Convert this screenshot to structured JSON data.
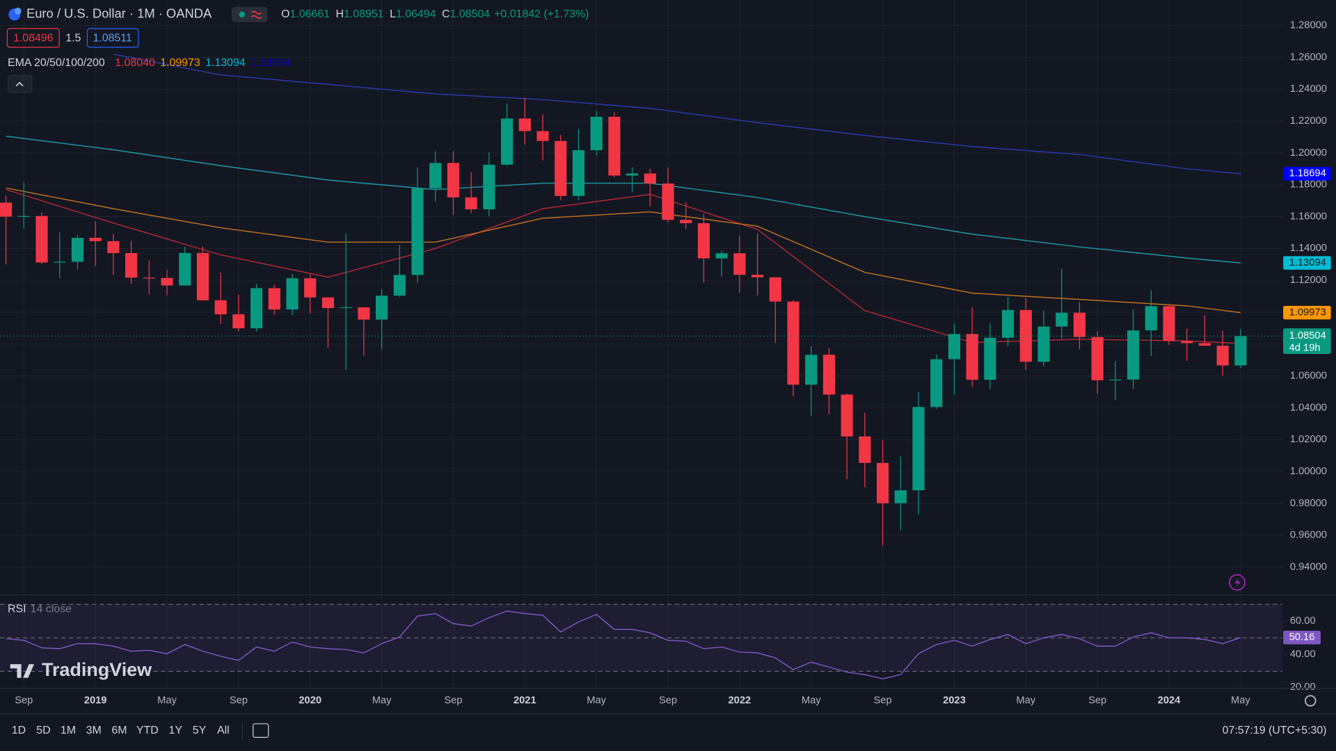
{
  "header": {
    "title": "Euro / U.S. Dollar · 1M · OANDA",
    "ohlc_keys": [
      "O",
      "H",
      "L",
      "C"
    ],
    "change": "+0.01842 (+1.73%)",
    "bid": "1.08496",
    "spread": "1.5",
    "ask": "1.08511",
    "indicator": "EMA 20/50/100/200"
  },
  "brand": "TradingView",
  "toolbar": {
    "ranges": [
      "1D",
      "5D",
      "1M",
      "3M",
      "6M",
      "YTD",
      "1Y",
      "5Y",
      "All"
    ],
    "clock": "07:57:19 (UTC+5:30)"
  },
  "chart_data": [
    {
      "type": "candlestick",
      "up_color": "#089981",
      "down_color": "#f23645",
      "grid": true,
      "countdown": "4d 19h",
      "categories": [
        null,
        "Sep",
        null,
        null,
        null,
        "2019",
        null,
        null,
        null,
        "May",
        null,
        null,
        null,
        "Sep",
        null,
        null,
        null,
        "2020",
        null,
        null,
        null,
        "May",
        null,
        null,
        null,
        "Sep",
        null,
        null,
        null,
        "2021",
        null,
        null,
        null,
        "May",
        null,
        null,
        null,
        "Sep",
        null,
        null,
        null,
        "2022",
        null,
        null,
        null,
        "May",
        null,
        null,
        null,
        "Sep",
        null,
        null,
        null,
        "2023",
        null,
        null,
        null,
        "May",
        null,
        null,
        null,
        "Sep",
        null,
        null,
        null,
        "2024",
        null,
        null,
        null,
        "May"
      ],
      "open": [
        1.1688,
        1.16,
        1.1604,
        1.1312,
        1.1317,
        1.1467,
        1.1446,
        1.1371,
        1.1217,
        1.1215,
        1.1168,
        1.1372,
        1.1075,
        1.0987,
        1.0899,
        1.1151,
        1.1017,
        1.1213,
        1.1093,
        1.1026,
        1.1031,
        1.0954,
        1.1104,
        1.1234,
        1.1778,
        1.1937,
        1.1721,
        1.1646,
        1.1926,
        1.2216,
        1.2137,
        1.2075,
        1.173,
        1.2017,
        1.2227,
        1.1858,
        1.1871,
        1.1808,
        1.158,
        1.1559,
        1.1338,
        1.137,
        1.1235,
        1.1219,
        1.1067,
        1.0545,
        1.0733,
        1.0483,
        1.022,
        1.0054,
        0.9801,
        0.9882,
        1.0405,
        1.0705,
        1.0863,
        1.0576,
        1.084,
        1.1014,
        1.0689,
        1.091,
        1.0997,
        1.0844,
        1.0573,
        1.0577,
        1.0886,
        1.1038,
        1.0819,
        1.0806,
        1.079,
        1.06661
      ],
      "high": [
        1.1733,
        1.1815,
        1.1625,
        1.15,
        1.1486,
        1.157,
        1.1489,
        1.1448,
        1.1324,
        1.1265,
        1.1412,
        1.1412,
        1.1249,
        1.111,
        1.1179,
        1.1175,
        1.1239,
        1.1239,
        1.1095,
        1.1495,
        1.1019,
        1.1147,
        1.1422,
        1.1909,
        1.2011,
        1.2011,
        1.188,
        1.2003,
        1.231,
        1.2349,
        1.2243,
        1.2113,
        1.215,
        1.2265,
        1.2254,
        1.1909,
        1.1901,
        1.1909,
        1.1692,
        1.1616,
        1.1386,
        1.1482,
        1.1495,
        1.1185,
        1.1076,
        1.0787,
        1.0774,
        1.0488,
        1.0369,
        1.0198,
        1.0094,
        1.0497,
        1.0736,
        1.0929,
        1.1033,
        1.093,
        1.1095,
        1.1092,
        1.1012,
        1.1275,
        1.1065,
        1.0882,
        1.0695,
        1.1017,
        1.114,
        1.1046,
        1.0898,
        1.0981,
        1.0885,
        1.08951
      ],
      "low": [
        1.1301,
        1.1525,
        1.1302,
        1.1216,
        1.1269,
        1.1289,
        1.1234,
        1.1176,
        1.1111,
        1.1107,
        1.1181,
        1.1101,
        1.0926,
        1.0879,
        1.0879,
        1.0981,
        1.0981,
        1.0992,
        1.0777,
        1.0636,
        1.0727,
        1.0767,
        1.1097,
        1.1185,
        1.1696,
        1.1612,
        1.1622,
        1.1603,
        1.192,
        1.2053,
        1.1952,
        1.1704,
        1.1704,
        1.1986,
        1.1847,
        1.1752,
        1.1664,
        1.1563,
        1.1524,
        1.1186,
        1.1222,
        1.1121,
        1.1106,
        1.0806,
        1.0472,
        1.0349,
        1.0359,
        0.9952,
        0.9901,
        0.9536,
        0.9632,
        0.973,
        1.0392,
        1.0482,
        1.0533,
        1.0516,
        1.0788,
        1.0635,
        1.0662,
        1.0834,
        1.0766,
        1.0488,
        1.0448,
        1.0517,
        1.0724,
        1.0795,
        1.0695,
        1.0801,
        1.0601,
        1.06494
      ],
      "close": [
        1.16,
        1.1604,
        1.1312,
        1.1317,
        1.1467,
        1.1446,
        1.1371,
        1.1217,
        1.1215,
        1.1168,
        1.1372,
        1.1075,
        1.0987,
        1.0899,
        1.1151,
        1.1017,
        1.1213,
        1.1093,
        1.1026,
        1.1031,
        1.0954,
        1.1104,
        1.1234,
        1.1778,
        1.1937,
        1.1721,
        1.1646,
        1.1926,
        1.2216,
        1.2137,
        1.2075,
        1.173,
        1.2017,
        1.2227,
        1.1858,
        1.1871,
        1.1808,
        1.158,
        1.1559,
        1.1338,
        1.137,
        1.1235,
        1.1219,
        1.1067,
        1.0545,
        1.0733,
        1.0483,
        1.022,
        1.0054,
        0.9801,
        0.9882,
        1.0405,
        1.0705,
        1.0863,
        1.0576,
        1.084,
        1.1014,
        1.0689,
        1.091,
        1.0997,
        1.0844,
        1.0573,
        1.0577,
        1.0886,
        1.1038,
        1.0819,
        1.0806,
        1.079,
        1.0666,
        1.08504
      ],
      "ylim": [
        0.9229,
        1.296
      ],
      "yticks": [
        {
          "value": 0.94,
          "label": "0.94000"
        },
        {
          "value": 0.96,
          "label": "0.96000"
        },
        {
          "value": 0.98,
          "label": "0.98000"
        },
        {
          "value": 1.0,
          "label": "1.00000"
        },
        {
          "value": 1.02,
          "label": "1.02000"
        },
        {
          "value": 1.04,
          "label": "1.04000"
        },
        {
          "value": 1.06,
          "label": "1.06000"
        },
        {
          "value": 1.08,
          "label": "1.08000"
        },
        {
          "value": 1.1,
          "label": "1.10000"
        },
        {
          "value": 1.12,
          "label": "1.12000"
        },
        {
          "value": 1.14,
          "label": "1.14000"
        },
        {
          "value": 1.16,
          "label": "1.16000"
        },
        {
          "value": 1.18,
          "label": "1.18000"
        },
        {
          "value": 1.2,
          "label": "1.20000"
        },
        {
          "value": 1.22,
          "label": "1.22000"
        },
        {
          "value": 1.24,
          "label": "1.24000"
        },
        {
          "value": 1.26,
          "label": "1.26000"
        },
        {
          "value": 1.28,
          "label": "1.28000"
        }
      ],
      "ema": [
        {
          "color": "#f23645",
          "line_color": "#b22833",
          "last_label": "1.08040",
          "x_index": [
            0,
            6,
            12,
            18,
            24,
            30,
            36,
            42,
            48,
            54,
            60,
            66,
            69
          ],
          "values": [
            1.177,
            1.156,
            1.136,
            1.122,
            1.14,
            1.165,
            1.174,
            1.152,
            1.101,
            1.081,
            1.083,
            1.082,
            1.0804
          ]
        },
        {
          "color": "#ff9800",
          "line_color": "#c2711f",
          "last_label": "1.09973",
          "x_index": [
            0,
            6,
            12,
            18,
            24,
            30,
            36,
            42,
            48,
            54,
            60,
            66,
            69
          ],
          "values": [
            1.178,
            1.165,
            1.153,
            1.144,
            1.144,
            1.159,
            1.163,
            1.154,
            1.125,
            1.112,
            1.108,
            1.104,
            1.09973
          ]
        },
        {
          "color": "#00bcd4",
          "line_color": "#1a9aa8",
          "last_label": "1.13094",
          "x_index": [
            0,
            6,
            12,
            18,
            24,
            30,
            36,
            42,
            48,
            54,
            60,
            66,
            69
          ],
          "values": [
            1.2105,
            1.202,
            1.192,
            1.183,
            1.177,
            1.181,
            1.181,
            1.172,
            1.16,
            1.149,
            1.141,
            1.134,
            1.13094
          ]
        },
        {
          "color": "#0000ff",
          "line_color": "#2a3aa8",
          "last_label": "1.18694",
          "x_index": [
            6,
            12,
            18,
            24,
            30,
            36,
            42,
            48,
            54,
            60,
            66,
            69
          ],
          "values": [
            1.262,
            1.249,
            1.243,
            1.237,
            1.2335,
            1.228,
            1.219,
            1.211,
            1.204,
            1.199,
            1.19,
            1.18694
          ]
        }
      ]
    },
    {
      "type": "line",
      "title": "RSI",
      "subtitle": "14 close",
      "color": "#7e57c2",
      "values": [
        49.5,
        48.5,
        44,
        43.5,
        46.5,
        46.5,
        45,
        42,
        42.5,
        40.5,
        46,
        42,
        39,
        36.5,
        44.5,
        42,
        47.5,
        44.5,
        43.5,
        43,
        41,
        46.5,
        50.5,
        63,
        64.5,
        58.5,
        57,
        62,
        66,
        64.5,
        63.5,
        53.5,
        59.5,
        64,
        55,
        55,
        53,
        48.5,
        48,
        43.5,
        44.5,
        41.5,
        41,
        38,
        31,
        35.5,
        32.5,
        29.5,
        28,
        25.5,
        28,
        40.5,
        46,
        48.5,
        45,
        49,
        52,
        46.5,
        50,
        52,
        49.5,
        45,
        45,
        50.5,
        53,
        50,
        50,
        49,
        46.5,
        50.16
      ],
      "ylim": [
        20,
        76
      ],
      "yticks": [
        {
          "value": 20,
          "label": "20.00"
        },
        {
          "value": 40,
          "label": "40.00"
        },
        {
          "value": 60,
          "label": "60.00"
        }
      ],
      "levels": [
        30,
        50,
        70
      ]
    }
  ]
}
